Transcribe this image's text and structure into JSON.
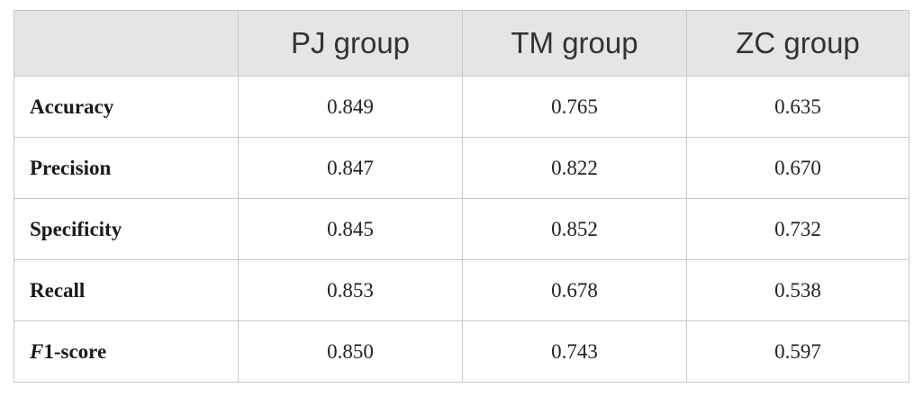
{
  "table": {
    "headers": [
      "",
      "PJ group",
      "TM group",
      "ZC group"
    ],
    "rows": [
      {
        "label": "Accuracy",
        "values": [
          "0.849",
          "0.765",
          "0.635"
        ]
      },
      {
        "label": "Precision",
        "values": [
          "0.847",
          "0.822",
          "0.670"
        ]
      },
      {
        "label": "Specificity",
        "values": [
          "0.845",
          "0.852",
          "0.732"
        ]
      },
      {
        "label": "Recall",
        "values": [
          "0.853",
          "0.678",
          "0.538"
        ]
      },
      {
        "label_italic": "F",
        "label_rest": "1-score",
        "values": [
          "0.850",
          "0.743",
          "0.597"
        ]
      }
    ]
  },
  "colors": {
    "header_background": "#e5e5e5",
    "border": "#c9c9c9"
  }
}
